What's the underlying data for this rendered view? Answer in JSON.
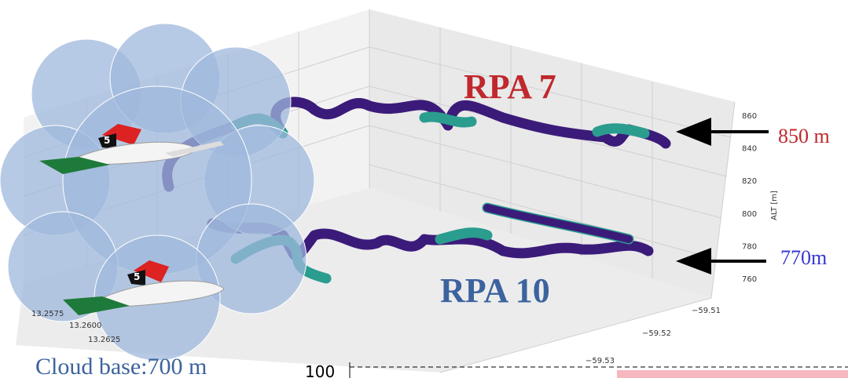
{
  "labels": {
    "rpa7": "RPA 7",
    "rpa10": "RPA 10",
    "alt850": "850 m",
    "alt770": "770m",
    "cloud_base": "Cloud base:700 m"
  },
  "axes": {
    "alt_label": "ALT [m]",
    "alt_ticks": [
      "860",
      "840",
      "820",
      "800",
      "780",
      "760"
    ],
    "lon_ticks": [
      "−59.51",
      "−59.52",
      "−59.53"
    ],
    "lat_ticks": [
      "13.2575",
      "13.2600",
      "13.2625"
    ]
  },
  "aircraft": {
    "tail_number": "5"
  },
  "lower_panel": {
    "tick": "100"
  }
}
